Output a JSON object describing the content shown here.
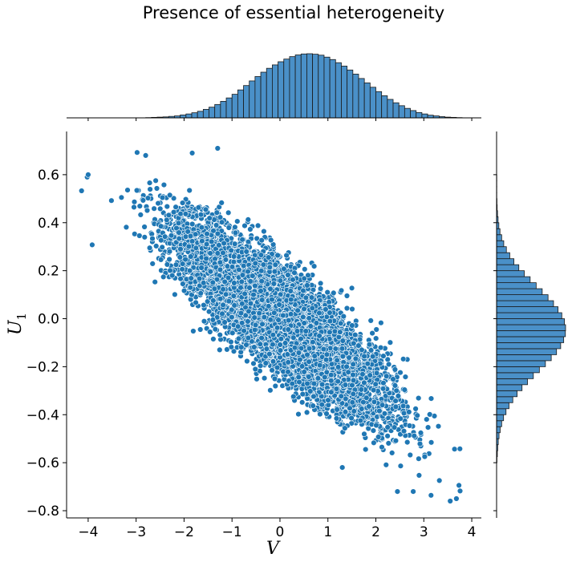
{
  "chart_data": {
    "type": "scatter",
    "title": "Presence of essential heterogeneity",
    "xlabel": "V",
    "ylabel_main": "U",
    "ylabel_sub": "1",
    "xlim": [
      -4.45,
      4.2
    ],
    "ylim": [
      -0.83,
      0.78
    ],
    "x_ticks": [
      -4,
      -3,
      -2,
      -1,
      0,
      1,
      2,
      3,
      4
    ],
    "x_tick_labels": [
      "−4",
      "−3",
      "−2",
      "−1",
      "0",
      "1",
      "2",
      "3",
      "4"
    ],
    "y_ticks": [
      -0.8,
      -0.6,
      -0.4,
      -0.2,
      0.0,
      0.2,
      0.4,
      0.6
    ],
    "y_tick_labels": [
      "−0.8",
      "−0.6",
      "−0.4",
      "−0.2",
      "0.0",
      "0.2",
      "0.4",
      "0.6"
    ],
    "grid": false,
    "scatter": {
      "n_points": 10000,
      "x_mean": 0.0,
      "x_sd": 1.0,
      "slope": -0.15,
      "residual_sd": 0.1,
      "outliers": [
        [
          -4.02,
          0.59
        ],
        [
          -4.0,
          0.6
        ],
        [
          -2.8,
          0.68
        ],
        [
          -1.3,
          0.71
        ],
        [
          -1.83,
          0.69
        ],
        [
          3.55,
          -0.76
        ],
        [
          3.68,
          -0.75
        ],
        [
          2.78,
          -0.72
        ],
        [
          2.45,
          -0.72
        ],
        [
          1.3,
          -0.62
        ]
      ]
    },
    "marginal_x": {
      "bin_start": -2.8,
      "bin_width": 0.12,
      "counts": [
        1,
        2,
        3,
        4,
        6,
        8,
        12,
        16,
        21,
        27,
        35,
        44,
        55,
        68,
        82,
        97,
        115,
        133,
        152,
        170,
        188,
        204,
        218,
        231,
        242,
        252,
        259,
        263,
        264,
        262,
        258,
        250,
        240,
        227,
        213,
        197,
        180,
        162,
        144,
        126,
        108,
        91,
        76,
        62,
        50,
        39,
        30,
        22,
        16,
        11,
        8,
        5,
        3,
        2,
        1
      ]
    },
    "marginal_y": {
      "bin_start": -0.6,
      "bin_width": 0.025,
      "counts": [
        2,
        4,
        6,
        9,
        13,
        19,
        27,
        37,
        50,
        66,
        86,
        109,
        135,
        164,
        195,
        227,
        259,
        290,
        318,
        340,
        356,
        365,
        366,
        360,
        346,
        326,
        302,
        273,
        242,
        210,
        178,
        147,
        118,
        92,
        70,
        52,
        38,
        27,
        18,
        12,
        8,
        5,
        3,
        2,
        1,
        1,
        1,
        1
      ]
    },
    "colors": {
      "point_fill": "#1f77b4",
      "point_edge": "#ffffff",
      "hist_fill": "#4a90c8",
      "hist_edge": "#1a1a1a",
      "axis": "#000000"
    }
  }
}
